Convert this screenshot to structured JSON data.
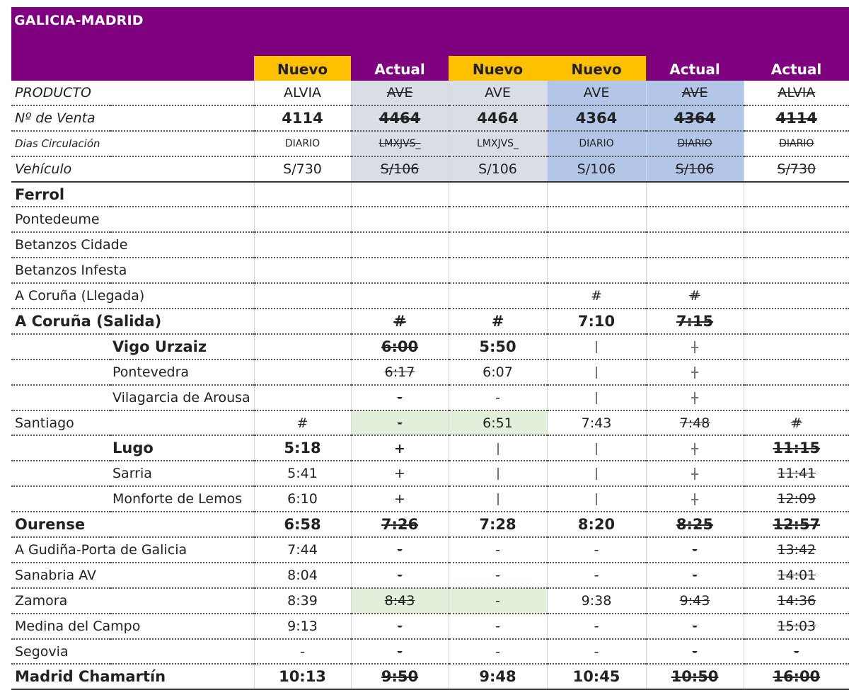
{
  "title": "GALICIA-MADRID",
  "header_labels": [
    "Nuevo",
    "Actual",
    "Nuevo",
    "Nuevo",
    "Actual",
    "Actual"
  ],
  "info_rows": [
    {
      "label": "PRODUCTO",
      "values": [
        "ALVIA",
        "AVE",
        "AVE",
        "AVE",
        "AVE",
        "ALVIA"
      ]
    },
    {
      "label": "Nº de Venta",
      "values": [
        "4114",
        "4464",
        "4464",
        "4364",
        "4364",
        "4114"
      ]
    },
    {
      "label": "Dias Circulación",
      "values": [
        "DIARIO",
        "LMXJVS_",
        "LMXJVS_",
        "DIARIO",
        "DIARIO",
        "DIARIO"
      ]
    },
    {
      "label": "Vehículo",
      "values": [
        "S/730",
        "S/106",
        "S/106",
        "S/106",
        "S/106",
        "S/730"
      ]
    }
  ],
  "station_rows": [
    {
      "a": "Ferrol",
      "b": "",
      "v": [
        "",
        "",
        "",
        "",
        "",
        ""
      ]
    },
    {
      "a": "Pontedeume",
      "b": "",
      "v": [
        "",
        "",
        "",
        "",
        "",
        ""
      ]
    },
    {
      "a": "Betanzos Cidade",
      "b": "",
      "v": [
        "",
        "",
        "",
        "",
        "",
        ""
      ]
    },
    {
      "a": "Betanzos Infesta",
      "b": "",
      "v": [
        "",
        "",
        "",
        "",
        "",
        ""
      ]
    },
    {
      "a": "A Coruña (Llegada)",
      "b": "",
      "v": [
        "",
        "",
        "",
        "#",
        "#",
        ""
      ]
    },
    {
      "a": "A Coruña (Salida)",
      "b": "",
      "v": [
        "",
        "#",
        "#",
        "7:10",
        "7:15",
        ""
      ]
    },
    {
      "a": "",
      "b": "Vigo Urzaiz",
      "v": [
        "",
        "6:00",
        "5:50",
        "|",
        "|",
        ""
      ]
    },
    {
      "a": "",
      "b": "Pontevedra",
      "v": [
        "",
        "6:17",
        "6:07",
        "|",
        "|",
        ""
      ]
    },
    {
      "a": "",
      "b": "Vilagarcia de Arousa",
      "v": [
        "",
        "-",
        "-",
        "|",
        "|",
        ""
      ]
    },
    {
      "a": "Santiago",
      "b": "",
      "v": [
        "#",
        "-",
        "6:51",
        "7:43",
        "7:48",
        "#"
      ]
    },
    {
      "a": "",
      "b": "Lugo",
      "v": [
        "5:18",
        "+",
        "|",
        "|",
        "|",
        "11:15"
      ]
    },
    {
      "a": "",
      "b": "Sarria",
      "v": [
        "5:41",
        "+",
        "|",
        "|",
        "|",
        "11:41"
      ]
    },
    {
      "a": "",
      "b": "Monforte de Lemos",
      "v": [
        "6:10",
        "+",
        "|",
        "|",
        "|",
        "12:09"
      ]
    },
    {
      "a": "Ourense",
      "b": "",
      "v": [
        "6:58",
        "7:26",
        "7:28",
        "8:20",
        "8:25",
        "12:57"
      ]
    },
    {
      "a": "A Gudiña-Porta de Galicia",
      "b": "",
      "v": [
        "7:44",
        "-",
        "-",
        "-",
        "-",
        "13:42"
      ]
    },
    {
      "a": "Sanabria AV",
      "b": "",
      "v": [
        "8:04",
        "-",
        "-",
        "-",
        "-",
        "14:01"
      ]
    },
    {
      "a": "Zamora",
      "b": "",
      "v": [
        "8:39",
        "8:43",
        "-",
        "9:38",
        "9:43",
        "14:36"
      ]
    },
    {
      "a": "Medina del Campo",
      "b": "",
      "v": [
        "9:13",
        "-",
        "-",
        "-",
        "-",
        "15:03"
      ]
    },
    {
      "a": "Segovia",
      "b": "",
      "v": [
        "-",
        "-",
        "-",
        "-",
        "-",
        "-"
      ]
    },
    {
      "a": "Madrid Chamartín",
      "b": "",
      "v": [
        "10:13",
        "9:50",
        "9:48",
        "10:45",
        "10:50",
        "16:00"
      ]
    }
  ],
  "colors": {
    "title_band": "#7f007f",
    "nuevo_header": "#ffc000",
    "gray_fill": "#d8dde6",
    "blue_fill": "#b4c6e7",
    "green_fill": "#e2efda"
  }
}
